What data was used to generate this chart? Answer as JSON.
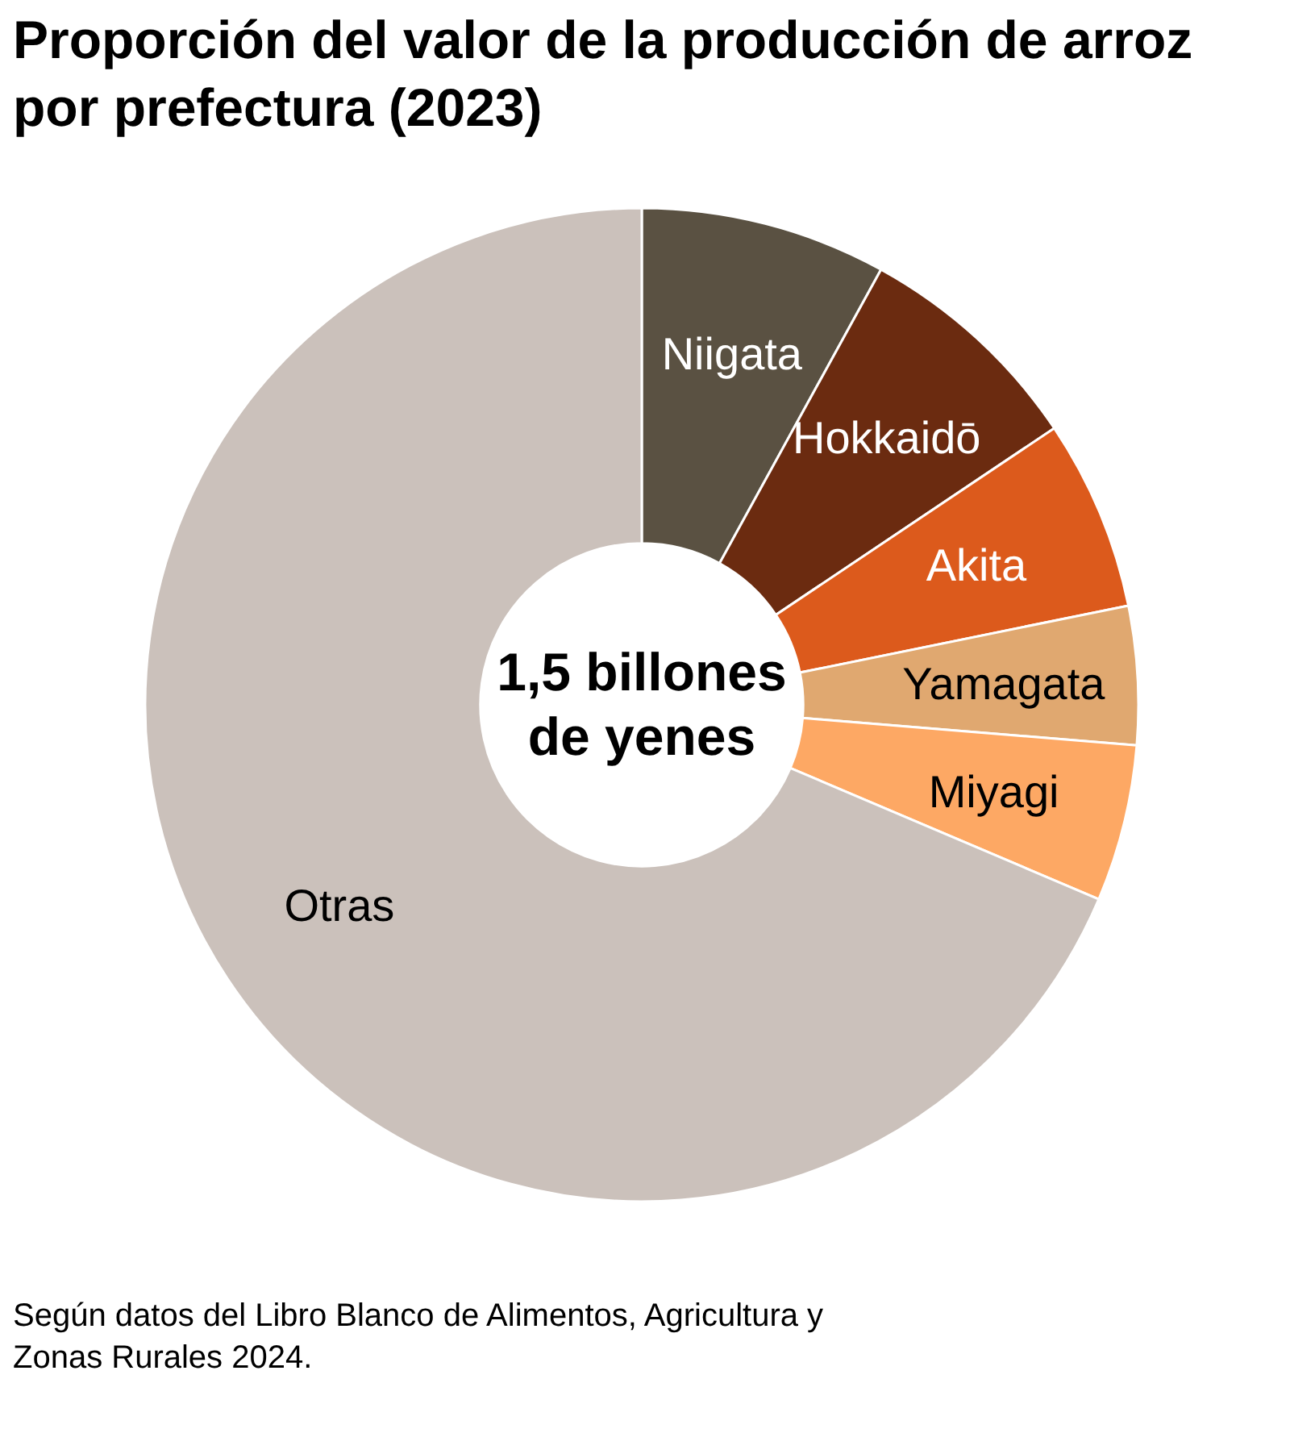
{
  "chart_data": {
    "type": "donut",
    "title": "Proporción del valor de la producción de arroz por prefectura (2023)",
    "categories": [
      "Niigata",
      "Hokkaidō",
      "Akita",
      "Yamagata",
      "Miyagi",
      "Otras"
    ],
    "values": [
      8.0,
      7.6,
      6.2,
      4.5,
      5.1,
      68.6
    ],
    "colors": [
      "#5a5142",
      "#6b2b10",
      "#dc5a1c",
      "#e0a870",
      "#fda864",
      "#cbc1bb"
    ],
    "annotations": [
      "1,5 billones de yenes",
      "Según datos del Libro Blanco de Alimentos, Agricultura y Zonas Rurales 2024."
    ]
  }
}
